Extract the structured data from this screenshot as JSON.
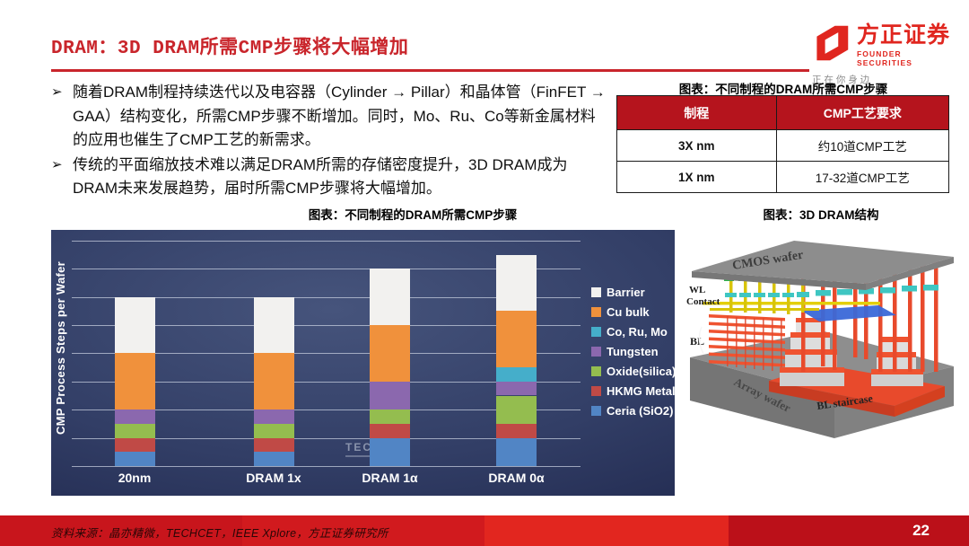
{
  "header": {
    "title": "DRAM：3D DRAM所需CMP步骤将大幅增加",
    "logo": {
      "name": "方正证券",
      "name_en": "FOUNDER SECURITIES",
      "slogan": "正 在 你 身 边"
    }
  },
  "bullets": [
    "随着DRAM制程持续迭代以及电容器（Cylinder → Pillar）和晶体管（FinFET → GAA）结构变化，所需CMP步骤不断增加。同时，Mo、Ru、Co等新金属材料的应用也催生了CMP工艺的新需求。",
    "传统的平面缩放技术难以满足DRAM所需的存储密度提升，3D DRAM成为DRAM未来发展趋势，届时所需CMP步骤将大幅增加。"
  ],
  "table_fig": {
    "title": "图表：不同制程的DRAM所需CMP步骤",
    "header_bg": "#b5141d",
    "headers": [
      "制程",
      "CMP工艺要求"
    ],
    "rows": [
      [
        "3X nm",
        "约10道CMP工艺"
      ],
      [
        "1X nm",
        "17-32道CMP工艺"
      ]
    ]
  },
  "chart_fig": {
    "title": "图表：不同制程的DRAM所需CMP步骤"
  },
  "chart_data": {
    "type": "bar",
    "stacked": true,
    "title": "图表：不同制程的DRAM所需CMP步骤",
    "ylabel": "CMP Process Steps per Wafer",
    "xlabel": "",
    "categories": [
      "20nm",
      "DRAM 1x",
      "DRAM 1α",
      "DRAM 0α"
    ],
    "series": [
      {
        "name": "Ceria (SiO2)",
        "color": "#5185c5",
        "values": [
          0.5,
          0.5,
          1.0,
          1.0
        ]
      },
      {
        "name": "HKMG Metal",
        "color": "#c04a46",
        "values": [
          0.5,
          0.5,
          0.5,
          0.5
        ]
      },
      {
        "name": "Oxide(silica)",
        "color": "#94bd4f",
        "values": [
          0.5,
          0.5,
          0.5,
          1.0
        ]
      },
      {
        "name": "Tungsten",
        "color": "#8b68ae",
        "values": [
          0.5,
          0.5,
          1.0,
          0.5
        ]
      },
      {
        "name": "Co, Ru, Mo",
        "color": "#45aeca",
        "values": [
          0.0,
          0.0,
          0.0,
          0.5
        ]
      },
      {
        "name": "Cu bulk",
        "color": "#f0913c",
        "values": [
          2.0,
          2.0,
          2.0,
          2.0
        ]
      },
      {
        "name": "Barrier",
        "color": "#f2f1ef",
        "values": [
          2.0,
          2.0,
          2.0,
          2.0
        ]
      }
    ],
    "totals_gridline_units": [
      6.0,
      6.0,
      7.0,
      7.5
    ],
    "ylim": [
      0,
      8.5
    ],
    "gridline_step": 1,
    "grid": true,
    "y_tick_labels": "none (unlabeled gridlines)",
    "legend_position": "right, inside plot, top-to-bottom: Barrier, Cu bulk, Co Ru Mo, Tungsten, Oxide(silica), HKMG Metal, Ceria (SiO2)",
    "watermark": "TECHCET",
    "background": "dark navy gradient"
  },
  "image_fig": {
    "title": "图表：3D DRAM结构",
    "labels": {
      "top_wafer": "CMOS wafer",
      "wl_line1": "WL",
      "wl_line2": "Contact",
      "bl": "BL",
      "bottom_wafer": "Array wafer",
      "staircase": "BL staircase"
    }
  },
  "footer": {
    "source": "资料来源：晶亦精微，TECHCET，IEEE Xplore，方正证券研究所",
    "page": "22"
  }
}
